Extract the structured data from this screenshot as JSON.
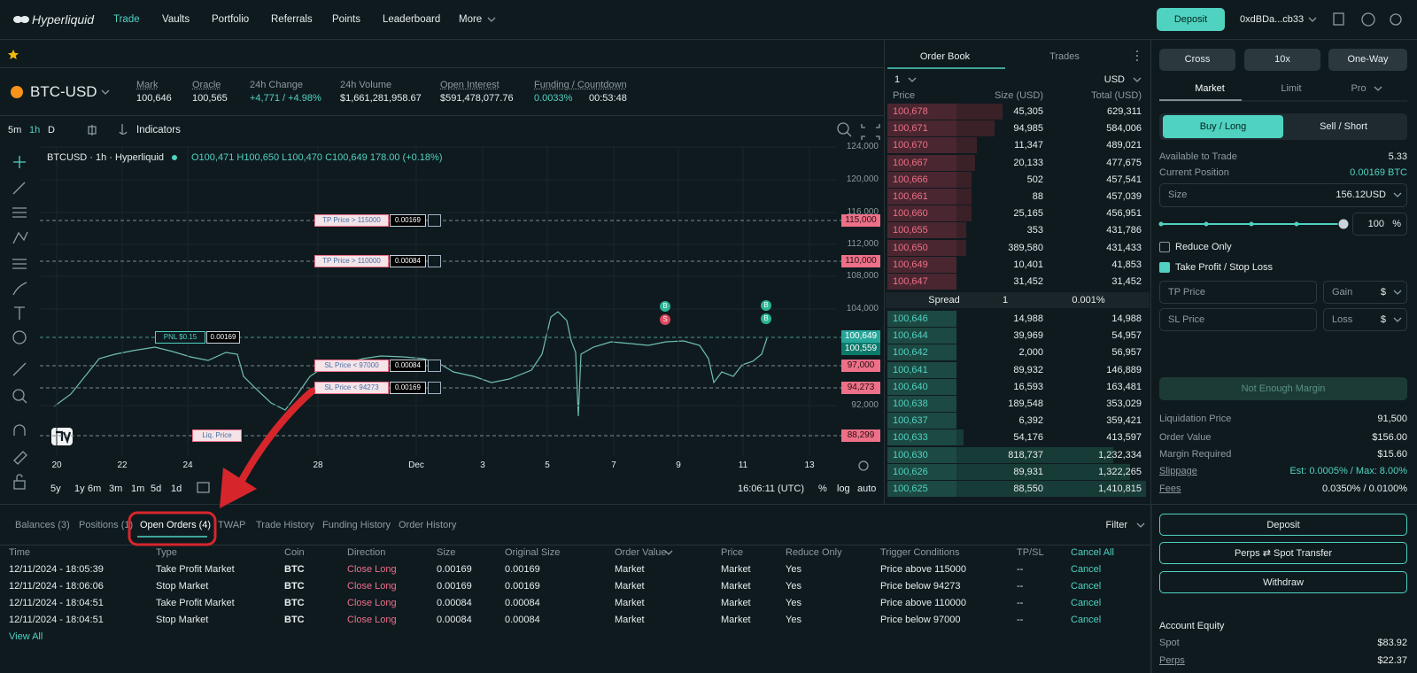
{
  "nav": {
    "brand": "Hyperliquid",
    "links": [
      "Trade",
      "Vaults",
      "Portfolio",
      "Referrals",
      "Points",
      "Leaderboard",
      "More"
    ],
    "deposit": "Deposit",
    "wallet": "0xdBDa...cb33"
  },
  "ticker": {
    "pair": "BTC-USD",
    "stats": [
      {
        "label": "Mark",
        "value": "100,646"
      },
      {
        "label": "Oracle",
        "value": "100,565"
      },
      {
        "label": "24h Change",
        "value": "+4,771 / +4.98%"
      },
      {
        "label": "24h Volume",
        "value": "$1,661,281,958.67"
      },
      {
        "label": "Open Interest",
        "value": "$591,478,077.76"
      },
      {
        "label": "Funding / Countdown",
        "value": "0.0033%",
        "extra": "00:53:48"
      }
    ]
  },
  "chart": {
    "intervals": [
      "5m",
      "1h",
      "D"
    ],
    "indicators": "Indicators",
    "legend": "BTCUSD · 1h · Hyperliquid",
    "ohlc": "O100,471 H100,650 L100,470 C100,649 178.00 (+0.18%)",
    "yticks": [
      "124,000",
      "120,000",
      "116,000",
      "112,000",
      "108,000",
      "104,000",
      "92,000"
    ],
    "xticks": [
      "20",
      "22",
      "24",
      "28",
      "Dec",
      "3",
      "5",
      "7",
      "9",
      "11",
      "13"
    ],
    "ranges": [
      "5y",
      "1y",
      "6m",
      "3m",
      "1m",
      "5d",
      "1d"
    ],
    "clock": "16:06:11 (UTC)",
    "scale": [
      "%",
      "log",
      "auto"
    ],
    "orders": [
      {
        "label": "TP Price > 115000",
        "qty": "0.00169",
        "price": "115,000"
      },
      {
        "label": "TP Price > 110000",
        "qty": "0.00084",
        "price": "110,000"
      },
      {
        "label": "SL Price < 97000",
        "qty": "0.00084",
        "price": "97,000"
      },
      {
        "label": "SL Price < 94273",
        "qty": "0.00169",
        "price": "94,273"
      }
    ],
    "pnl": {
      "label": "PNL $0.15",
      "qty": "0.00169"
    },
    "liq": {
      "label": "Liq. Price",
      "price": "88,299"
    },
    "last": [
      "100,649",
      "100,559"
    ],
    "markers": [
      "B",
      "S",
      "B",
      "B"
    ]
  },
  "orderbook": {
    "tabs": [
      "Order Book",
      "Trades"
    ],
    "group": "1",
    "unit": "USD",
    "headers": [
      "Price",
      "Size (USD)",
      "Total (USD)"
    ],
    "asks": [
      [
        "100,678",
        "45,305",
        "629,311"
      ],
      [
        "100,671",
        "94,985",
        "584,006"
      ],
      [
        "100,670",
        "11,347",
        "489,021"
      ],
      [
        "100,667",
        "20,133",
        "477,675"
      ],
      [
        "100,666",
        "502",
        "457,541"
      ],
      [
        "100,661",
        "88",
        "457,039"
      ],
      [
        "100,660",
        "25,165",
        "456,951"
      ],
      [
        "100,655",
        "353",
        "431,786"
      ],
      [
        "100,650",
        "389,580",
        "431,433"
      ],
      [
        "100,649",
        "10,401",
        "41,853"
      ],
      [
        "100,647",
        "31,452",
        "31,452"
      ]
    ],
    "spread": [
      "Spread",
      "1",
      "0.001%"
    ],
    "bids": [
      [
        "100,646",
        "14,988",
        "14,988"
      ],
      [
        "100,644",
        "39,969",
        "54,957"
      ],
      [
        "100,642",
        "2,000",
        "56,957"
      ],
      [
        "100,641",
        "89,932",
        "146,889"
      ],
      [
        "100,640",
        "16,593",
        "163,481"
      ],
      [
        "100,638",
        "189,548",
        "353,029"
      ],
      [
        "100,637",
        "6,392",
        "359,421"
      ],
      [
        "100,633",
        "54,176",
        "413,597"
      ],
      [
        "100,630",
        "818,737",
        "1,232,334"
      ],
      [
        "100,626",
        "89,931",
        "1,322,265"
      ],
      [
        "100,625",
        "88,550",
        "1,410,815"
      ]
    ]
  },
  "trade": {
    "modes": [
      "Cross",
      "10x",
      "One-Way"
    ],
    "tabs": [
      "Market",
      "Limit",
      "Pro"
    ],
    "sides": [
      "Buy / Long",
      "Sell / Short"
    ],
    "available": {
      "label": "Available to Trade",
      "value": "5.33"
    },
    "position": {
      "label": "Current Position",
      "value": "0.00169 BTC"
    },
    "size": {
      "label": "Size",
      "value": "156.12",
      "unit": "USD"
    },
    "percent": {
      "value": "100",
      "unit": "%"
    },
    "reduce": "Reduce Only",
    "tpsl": "Take Profit / Stop Loss",
    "tp": {
      "label": "TP Price",
      "kind": "Gain",
      "unit": "$"
    },
    "sl": {
      "label": "SL Price",
      "kind": "Loss",
      "unit": "$"
    },
    "submit": "Not Enough Margin",
    "info": [
      [
        "Liquidation Price",
        "91,500"
      ],
      [
        "Order Value",
        "$156.00"
      ],
      [
        "Margin Required",
        "$15.60"
      ],
      [
        "Slippage",
        "Est: 0.0005% / Max: 8.00%"
      ],
      [
        "Fees",
        "0.0350% / 0.0100%"
      ]
    ]
  },
  "account": {
    "buttons": [
      "Deposit",
      "Perps ⇄ Spot Transfer",
      "Withdraw"
    ],
    "title": "Account Equity",
    "rows": [
      [
        "Spot",
        "$83.92"
      ],
      [
        "Perps",
        "$22.37"
      ]
    ]
  },
  "bottom": {
    "tabs": [
      "Balances (3)",
      "Positions (1)",
      "Open Orders (4)",
      "TWAP",
      "Trade History",
      "Funding History",
      "Order History"
    ],
    "filter": "Filter",
    "headers": [
      "Time",
      "Type",
      "Coin",
      "Direction",
      "Size",
      "Original Size",
      "Order Value",
      "Price",
      "Reduce Only",
      "Trigger Conditions",
      "TP/SL",
      "Cancel All"
    ],
    "rows": [
      [
        "12/11/2024 - 18:05:39",
        "Take Profit Market",
        "BTC",
        "Close Long",
        "0.00169",
        "0.00169",
        "Market",
        "Market",
        "Yes",
        "Price above 115000",
        "--",
        "Cancel"
      ],
      [
        "12/11/2024 - 18:06:06",
        "Stop Market",
        "BTC",
        "Close Long",
        "0.00169",
        "0.00169",
        "Market",
        "Market",
        "Yes",
        "Price below 94273",
        "--",
        "Cancel"
      ],
      [
        "12/11/2024 - 18:04:51",
        "Take Profit Market",
        "BTC",
        "Close Long",
        "0.00084",
        "0.00084",
        "Market",
        "Market",
        "Yes",
        "Price above 110000",
        "--",
        "Cancel"
      ],
      [
        "12/11/2024 - 18:04:51",
        "Stop Market",
        "BTC",
        "Close Long",
        "0.00084",
        "0.00084",
        "Market",
        "Market",
        "Yes",
        "Price below 97000",
        "--",
        "Cancel"
      ]
    ],
    "view_all": "View All"
  }
}
